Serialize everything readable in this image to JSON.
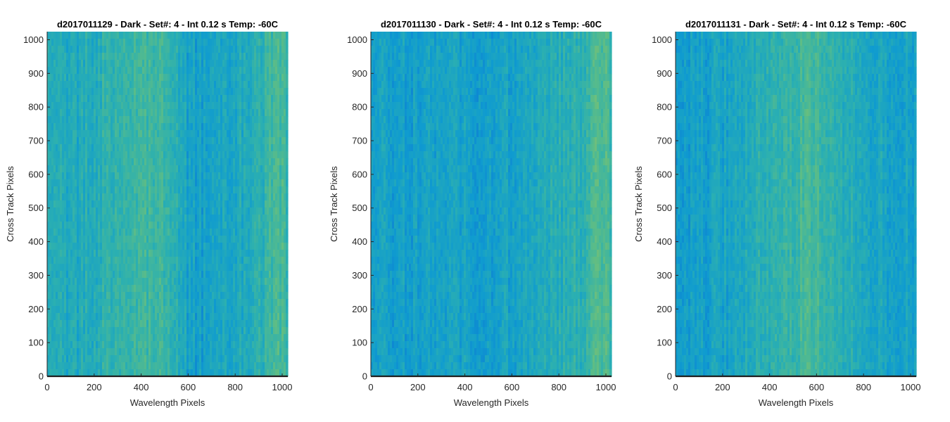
{
  "chart_data": [
    {
      "type": "heatmap",
      "title": "d2017011129 - Dark - Set#: 4 - Int 0.12 s Temp: -60C",
      "xlabel": "Wavelength Pixels",
      "ylabel": "Cross Track Pixels",
      "xlim": [
        0,
        1024
      ],
      "ylim": [
        0,
        1024
      ],
      "xticks": [
        0,
        200,
        400,
        600,
        800,
        1000
      ],
      "yticks": [
        0,
        100,
        200,
        300,
        400,
        500,
        600,
        700,
        800,
        900,
        1000
      ],
      "column_profile_x": [
        0,
        100,
        200,
        300,
        400,
        450,
        500,
        550,
        600,
        650,
        700,
        800,
        900,
        950,
        1000,
        1024
      ],
      "column_profile_level": [
        0.42,
        0.4,
        0.46,
        0.55,
        0.56,
        0.6,
        0.56,
        0.46,
        0.33,
        0.3,
        0.34,
        0.38,
        0.46,
        0.6,
        0.62,
        0.52
      ]
    },
    {
      "type": "heatmap",
      "title": "d2017011130 - Dark - Set#: 4 - Int 0.12 s Temp: -60C",
      "xlabel": "Wavelength Pixels",
      "ylabel": "Cross Track Pixels",
      "xlim": [
        0,
        1024
      ],
      "ylim": [
        0,
        1024
      ],
      "xticks": [
        0,
        200,
        400,
        600,
        800,
        1000
      ],
      "yticks": [
        0,
        100,
        200,
        300,
        400,
        500,
        600,
        700,
        800,
        900,
        1000
      ],
      "column_profile_x": [
        0,
        100,
        200,
        300,
        400,
        500,
        600,
        700,
        750,
        800,
        850,
        900,
        950,
        1000,
        1024
      ],
      "column_profile_level": [
        0.34,
        0.3,
        0.32,
        0.34,
        0.32,
        0.3,
        0.34,
        0.4,
        0.44,
        0.46,
        0.48,
        0.52,
        0.66,
        0.68,
        0.52
      ]
    },
    {
      "type": "heatmap",
      "title": "d2017011131 - Dark - Set#: 4 - Int 0.12 s Temp: -60C",
      "xlabel": "Wavelength Pixels",
      "ylabel": "Cross Track Pixels",
      "xlim": [
        0,
        1024
      ],
      "ylim": [
        0,
        1024
      ],
      "xticks": [
        0,
        200,
        400,
        600,
        800,
        1000
      ],
      "yticks": [
        0,
        100,
        200,
        300,
        400,
        500,
        600,
        700,
        800,
        900,
        1000
      ],
      "column_profile_x": [
        0,
        100,
        200,
        300,
        350,
        400,
        500,
        550,
        600,
        650,
        700,
        800,
        900,
        1000,
        1024
      ],
      "column_profile_level": [
        0.3,
        0.3,
        0.34,
        0.4,
        0.48,
        0.46,
        0.58,
        0.64,
        0.62,
        0.56,
        0.48,
        0.4,
        0.36,
        0.34,
        0.3
      ]
    }
  ],
  "colors": {
    "colormap": [
      "#0d6fd4",
      "#0f9bd0",
      "#2cb0b0",
      "#5ebd85",
      "#a9c55a"
    ],
    "axis": "#262626",
    "baseline": "#1f1f1f"
  }
}
